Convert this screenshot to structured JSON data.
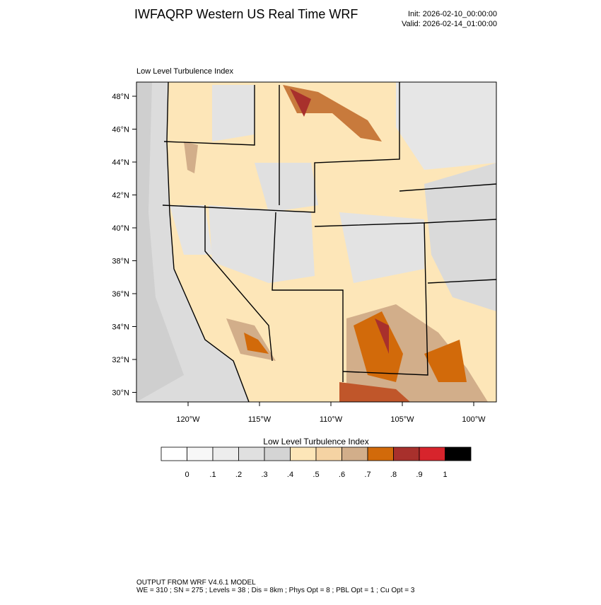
{
  "header": {
    "title": "IWFAQRP Western US Real Time WRF",
    "init": "Init: 2026-02-10_00:00:00",
    "valid": "Valid: 2026-02-14_01:00:00"
  },
  "map": {
    "title": "Low Level Turbulence Index",
    "lat_labels": [
      "48°N",
      "46°N",
      "44°N",
      "42°N",
      "40°N",
      "38°N",
      "36°N",
      "34°N",
      "32°N",
      "30°N"
    ],
    "lon_labels": [
      "120°W",
      "115°W",
      "110°W",
      "105°W",
      "100°W"
    ]
  },
  "colorbar": {
    "title": "Low Level Turbulence Index",
    "colors": [
      "#ffffff",
      "#f7f7f7",
      "#ededed",
      "#e0e0e0",
      "#d4d4d4",
      "#fde6b8",
      "#f5d3a3",
      "#d2ae8a",
      "#d26a0a",
      "#a8302c",
      "#d7242c",
      "#000000"
    ],
    "ticks": [
      {
        "value": 0,
        "label": "0"
      },
      {
        "value": 0.1,
        "label": ".1"
      },
      {
        "value": 0.2,
        "label": ".2"
      },
      {
        "value": 0.3,
        "label": ".3"
      },
      {
        "value": 0.4,
        "label": ".4"
      },
      {
        "value": 0.5,
        "label": ".5"
      },
      {
        "value": 0.6,
        "label": ".6"
      },
      {
        "value": 0.7,
        "label": ".7"
      },
      {
        "value": 0.8,
        "label": ".8"
      },
      {
        "value": 0.9,
        "label": ".9"
      },
      {
        "value": 1,
        "label": "1"
      }
    ]
  },
  "footer": {
    "line1": "OUTPUT FROM WRF V4.6.1 MODEL",
    "line2": "WE = 310 ; SN = 275 ; Levels = 38 ; Dis = 8km ; Phys Opt = 8 ; PBL Opt = 1 ; Cu Opt = 3"
  }
}
